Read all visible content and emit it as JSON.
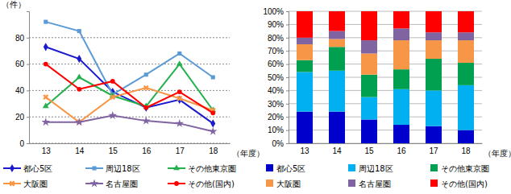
{
  "chart_data": [
    {
      "type": "line",
      "y_label": "（件）",
      "x_label": "（年度）",
      "categories": [
        "13",
        "14",
        "15",
        "16",
        "17",
        "18"
      ],
      "ylim": [
        0,
        100
      ],
      "yticks": [
        0,
        20,
        40,
        60,
        80
      ],
      "grid": true,
      "legend": "bottom",
      "series": [
        {
          "name": "都心5区",
          "color": "#1a1acc",
          "marker": "diamond",
          "values": [
            73,
            64,
            39,
            27,
            33,
            15
          ]
        },
        {
          "name": "周辺18区",
          "color": "#5b9bd5",
          "marker": "square",
          "values": [
            92,
            85,
            37,
            52,
            68,
            50
          ]
        },
        {
          "name": "その他東京圏",
          "color": "#22b14c",
          "marker": "triangle",
          "values": [
            28,
            50,
            36,
            28,
            60,
            25
          ]
        },
        {
          "name": "大阪圏",
          "color": "#f79646",
          "marker": "x",
          "values": [
            35,
            16,
            35,
            42,
            34,
            25
          ]
        },
        {
          "name": "名古屋圏",
          "color": "#8064a2",
          "marker": "star",
          "values": [
            16,
            16,
            21,
            17,
            15,
            9
          ]
        },
        {
          "name": "その他(国内)",
          "color": "#ff0000",
          "marker": "circle",
          "values": [
            60,
            41,
            47,
            27,
            39,
            23
          ]
        }
      ]
    },
    {
      "type": "bar",
      "stacked": true,
      "x_label": "（年度）",
      "categories": [
        "13",
        "14",
        "15",
        "16",
        "17",
        "18"
      ],
      "ylim": [
        0,
        100
      ],
      "yticks": [
        {
          "value": 0,
          "label": "0%"
        },
        {
          "value": 10,
          "label": "10%"
        },
        {
          "value": 20,
          "label": "20%"
        },
        {
          "value": 30,
          "label": "30%"
        },
        {
          "value": 40,
          "label": "40%"
        },
        {
          "value": 50,
          "label": "50%"
        },
        {
          "value": 60,
          "label": "60%"
        },
        {
          "value": 70,
          "label": "70%"
        },
        {
          "value": 80,
          "label": "80%"
        },
        {
          "value": 90,
          "label": "90%"
        },
        {
          "value": 100,
          "label": "100%"
        }
      ],
      "grid": true,
      "legend": "bottom",
      "series": [
        {
          "name": "都心5区",
          "color": "#0000cc",
          "values": [
            24,
            24,
            18,
            14,
            13,
            10
          ]
        },
        {
          "name": "周辺18区",
          "color": "#00b0f0",
          "values": [
            30,
            31,
            17,
            27,
            27,
            34
          ]
        },
        {
          "name": "その他東京圏",
          "color": "#00a050",
          "values": [
            9,
            18,
            17,
            15,
            24,
            17
          ]
        },
        {
          "name": "大阪圏",
          "color": "#f79646",
          "values": [
            12,
            6,
            16,
            22,
            14,
            17
          ]
        },
        {
          "name": "名古屋圏",
          "color": "#8064a2",
          "values": [
            5,
            6,
            10,
            9,
            6,
            6
          ]
        },
        {
          "name": "その他(国内)",
          "color": "#ff0000",
          "values": [
            20,
            15,
            22,
            13,
            16,
            16
          ]
        }
      ]
    }
  ]
}
